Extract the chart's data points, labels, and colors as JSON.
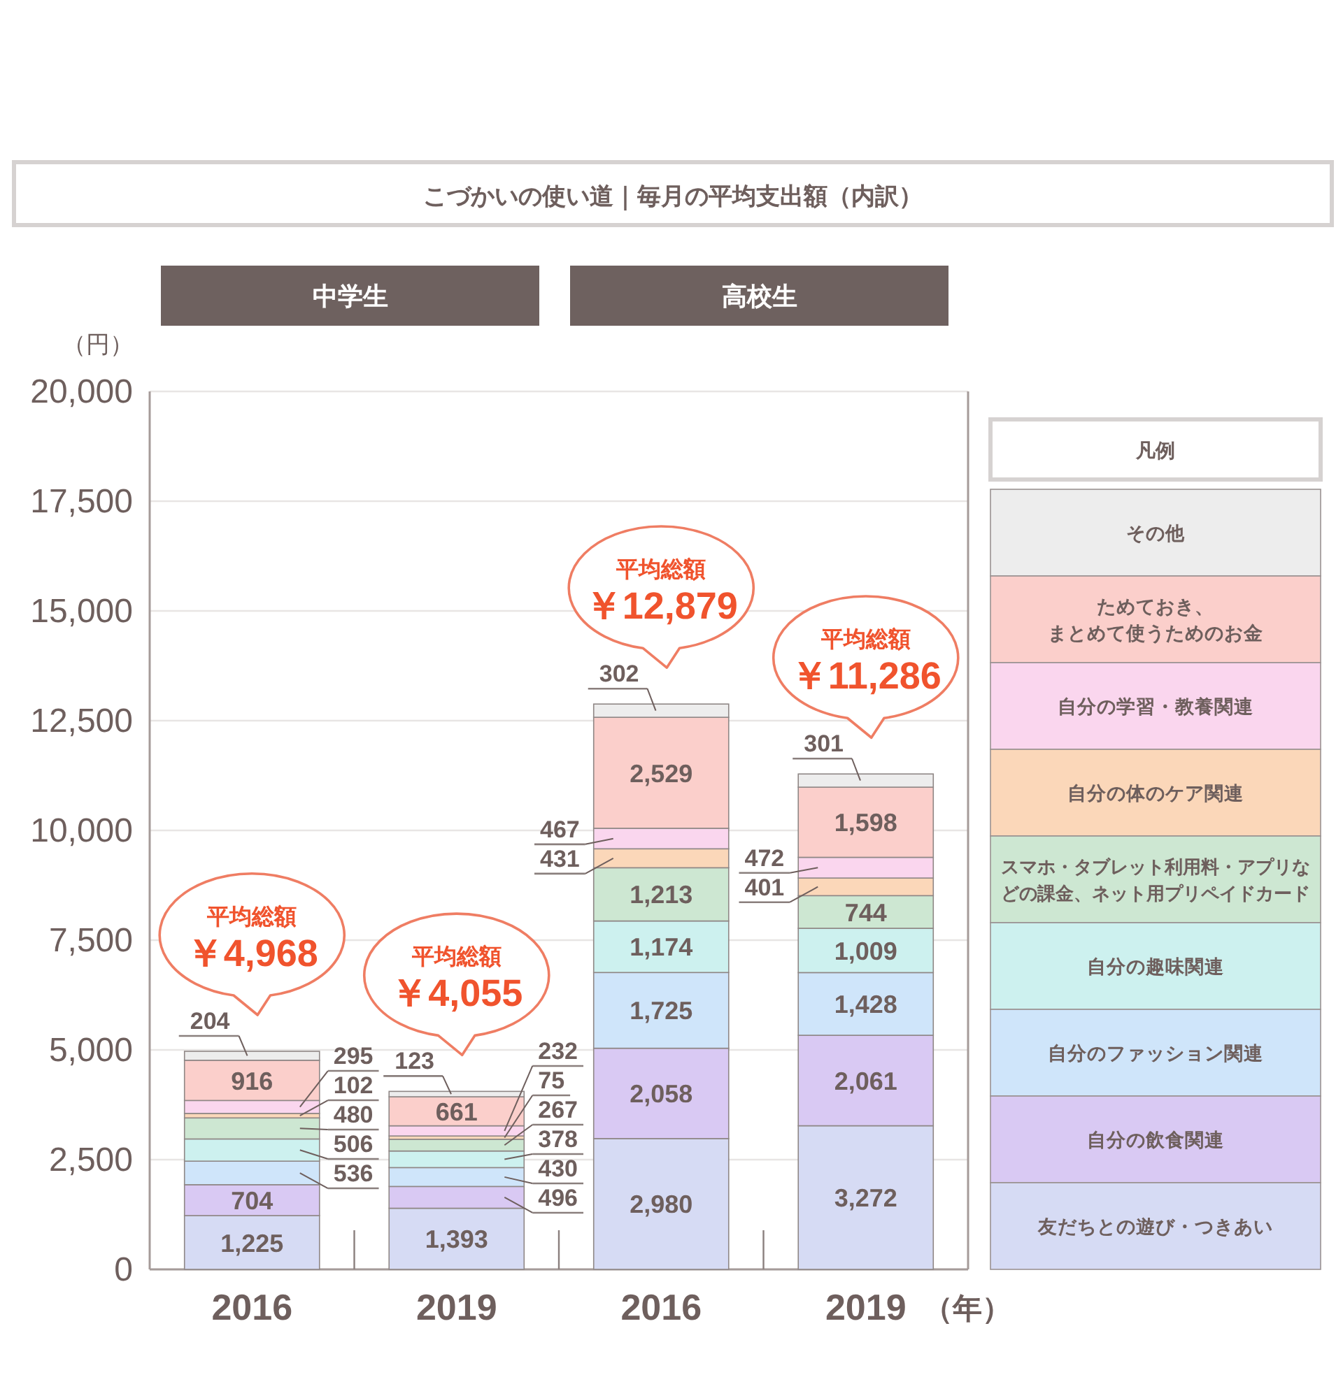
{
  "chart_data": {
    "type": "bar",
    "stacked": true,
    "title": "こづかいの使い道｜毎月の平均支出額（内訳）",
    "ylabel": "（円）",
    "xlabel": "（年）",
    "categories": [
      "2016",
      "2019",
      "2016",
      "2019"
    ],
    "series": [
      {
        "name": "友だちとの遊び・つきあい",
        "color": "#d6dbf4",
        "values": [
          1225,
          1393,
          2980,
          3272
        ],
        "value_labels": [
          "1,225",
          "1,393",
          "2,980",
          "3,272"
        ]
      },
      {
        "name": "自分の飲食関連",
        "color": "#d9c9f3",
        "values": [
          704,
          496,
          2058,
          2061
        ],
        "value_labels": [
          "704",
          "496",
          "2,058",
          "2,061"
        ]
      },
      {
        "name": "自分のファッション関連",
        "color": "#cfe5fa",
        "values": [
          536,
          430,
          1725,
          1428
        ],
        "value_labels": [
          "536",
          "430",
          "1,725",
          "1,428"
        ]
      },
      {
        "name": "自分の趣味関連",
        "color": "#cdf1ef",
        "values": [
          506,
          378,
          1174,
          1009
        ],
        "value_labels": [
          "506",
          "378",
          "1,174",
          "1,009"
        ]
      },
      {
        "name": "スマホ・タブレット利用料・アプリなどの課金、ネット用プリペイドカード",
        "color": "#cde7d2",
        "values": [
          480,
          267,
          1213,
          744
        ],
        "value_labels": [
          "480",
          "267",
          "1,213",
          "744"
        ]
      },
      {
        "name": "自分の体のケア関連",
        "color": "#fbd7b9",
        "values": [
          102,
          75,
          431,
          401
        ],
        "value_labels": [
          "102",
          "75",
          "431",
          "401"
        ]
      },
      {
        "name": "自分の学習・教養関連",
        "color": "#fad6ee",
        "values": [
          295,
          232,
          467,
          472
        ],
        "value_labels": [
          "295",
          "232",
          "467",
          "472"
        ]
      },
      {
        "name": "ためておき、まとめて使うためのお金",
        "color": "#fbcfcb",
        "values": [
          916,
          661,
          2529,
          1598
        ],
        "value_labels": [
          "916",
          "661",
          "2,529",
          "1,598"
        ]
      },
      {
        "name": "その他",
        "color": "#ededed",
        "values": [
          204,
          123,
          302,
          301
        ],
        "value_labels": [
          "204",
          "123",
          "302",
          "301"
        ]
      }
    ],
    "ylim": [
      0,
      20000
    ],
    "yticks": [
      0,
      {
        "value": 2500,
        "label": "2,500"
      },
      {
        "value": 5000,
        "label": "5,000"
      },
      {
        "value": 7500,
        "label": "7,500"
      },
      {
        "value": 10000,
        "label": "10,000"
      },
      {
        "value": 12500,
        "label": "12,500"
      },
      {
        "value": 15000,
        "label": "15,000"
      },
      {
        "value": 17500,
        "label": "17,500"
      },
      {
        "value": 20000,
        "label": "20,000"
      }
    ],
    "grid": "y",
    "legend": "right",
    "legend_title": "凡例",
    "totals": [
      "平均総額￥4,968",
      "平均総額￥4,055",
      "平均総額￥12,879",
      "平均総額￥11,286"
    ],
    "annotations": [
      "中学生",
      "高校生"
    ]
  }
}
